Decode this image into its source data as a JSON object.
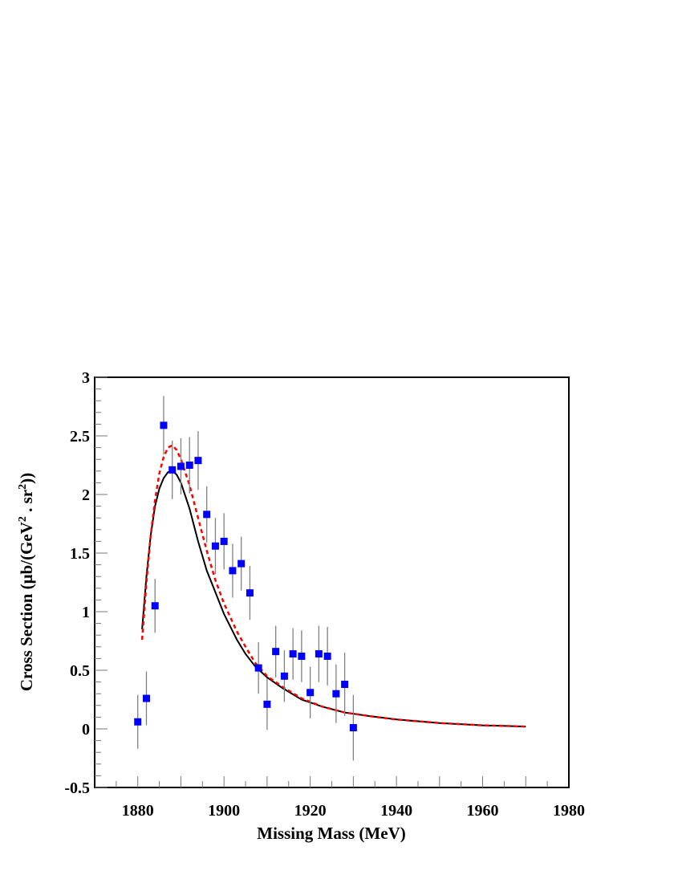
{
  "chart_data": {
    "type": "scatter",
    "title": "",
    "xlabel": "Missing Mass (MeV)",
    "ylabel_main": "Cross Section (",
    "ylabel_unit": "μb/(GeV",
    "ylabel_sup1": "2",
    "ylabel_mid": " . sr",
    "ylabel_sup2": "2",
    "ylabel_end": "))",
    "xlim": [
      1870,
      1980
    ],
    "ylim": [
      -0.5,
      3
    ],
    "x_ticks": [
      "1880",
      "1900",
      "1920",
      "1940",
      "1960",
      "1980"
    ],
    "y_ticks": [
      "-0.5",
      "0",
      "0.5",
      "1",
      "1.5",
      "2",
      "2.5",
      "3"
    ],
    "grid": false,
    "colors": {
      "points": "#0000ff",
      "error_bars": "#808080",
      "solid_curve": "#000000",
      "dashed_curve": "#ff0000"
    },
    "points": {
      "x": [
        1880,
        1882,
        1884,
        1886,
        1888,
        1890,
        1892,
        1894,
        1896,
        1898,
        1900,
        1902,
        1904,
        1906,
        1908,
        1910,
        1912,
        1914,
        1916,
        1918,
        1920,
        1922,
        1924,
        1926,
        1928,
        1930
      ],
      "y": [
        0.06,
        0.26,
        1.05,
        2.59,
        2.21,
        2.24,
        2.25,
        2.29,
        1.83,
        1.56,
        1.6,
        1.35,
        1.41,
        1.16,
        0.52,
        0.21,
        0.66,
        0.45,
        0.64,
        0.62,
        0.31,
        0.64,
        0.62,
        0.3,
        0.38,
        0.01
      ],
      "yerr": [
        0.23,
        0.23,
        0.23,
        0.25,
        0.25,
        0.24,
        0.24,
        0.25,
        0.24,
        0.24,
        0.24,
        0.23,
        0.23,
        0.23,
        0.22,
        0.22,
        0.22,
        0.22,
        0.22,
        0.22,
        0.22,
        0.24,
        0.25,
        0.25,
        0.27,
        0.28
      ]
    },
    "curves": [
      {
        "style": "solid",
        "x": [
          1881,
          1882,
          1883,
          1884,
          1885,
          1886,
          1887,
          1888,
          1889,
          1890,
          1892,
          1894,
          1896,
          1897.3,
          1900,
          1903,
          1905,
          1907.3,
          1910,
          1913.5,
          1918,
          1922.8,
          1928,
          1933.5,
          1940,
          1950,
          1960,
          1970
        ],
        "y": [
          0.85,
          1.3,
          1.65,
          1.9,
          2.05,
          2.14,
          2.19,
          2.2,
          2.17,
          2.1,
          1.88,
          1.6,
          1.35,
          1.23,
          0.98,
          0.76,
          0.64,
          0.53,
          0.44,
          0.35,
          0.25,
          0.19,
          0.14,
          0.11,
          0.08,
          0.05,
          0.03,
          0.02
        ]
      },
      {
        "style": "dashed",
        "x": [
          1881,
          1882,
          1883,
          1884,
          1885,
          1886,
          1887,
          1888,
          1889,
          1890,
          1892,
          1894,
          1896,
          1898,
          1900,
          1903,
          1905,
          1907.3,
          1910,
          1913.5,
          1918,
          1922.8,
          1928,
          1933.5,
          1940,
          1950,
          1960,
          1970
        ],
        "y": [
          0.76,
          1.25,
          1.65,
          1.95,
          2.18,
          2.32,
          2.4,
          2.42,
          2.38,
          2.3,
          2.08,
          1.8,
          1.52,
          1.27,
          1.07,
          0.83,
          0.7,
          0.56,
          0.45,
          0.36,
          0.26,
          0.19,
          0.14,
          0.11,
          0.08,
          0.05,
          0.03,
          0.02
        ]
      }
    ]
  }
}
